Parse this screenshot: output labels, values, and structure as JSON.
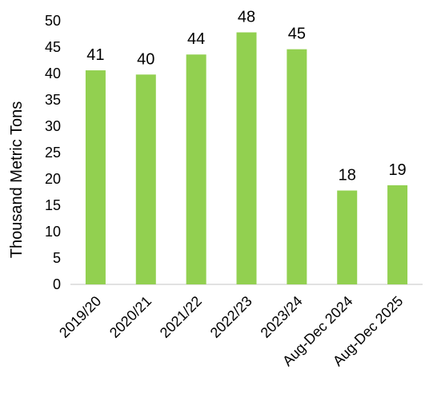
{
  "chart_data": {
    "type": "bar",
    "ylabel": "Thousand Metric Tons",
    "xlabel": "",
    "categories": [
      "2019/20",
      "2020/21",
      "2021/22",
      "2022/23",
      "2023/24",
      "Aug-Dec 2024",
      "Aug-Dec 2025"
    ],
    "values": [
      40.6,
      39.8,
      43.6,
      47.8,
      44.6,
      17.8,
      18.8
    ],
    "data_labels": [
      "41",
      "40",
      "44",
      "48",
      "45",
      "18",
      "19"
    ],
    "ylim": [
      0,
      50
    ],
    "yticks": [
      0,
      5,
      10,
      15,
      20,
      25,
      30,
      35,
      40,
      45,
      50
    ],
    "grid": false,
    "legend": "none",
    "colors": {
      "bar": "#92d050"
    }
  }
}
